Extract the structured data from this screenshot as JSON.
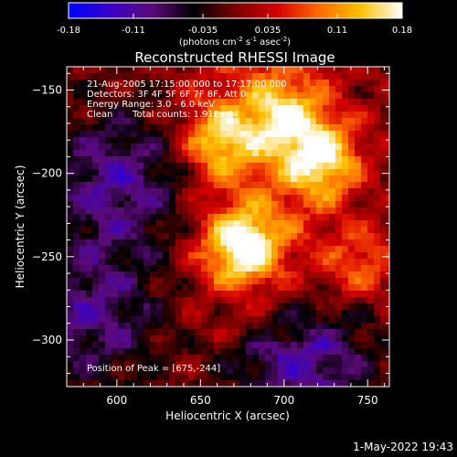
{
  "colorbar": {
    "ticks": [
      "-0.18",
      "-0.11",
      "-0.035",
      "0.035",
      "0.11",
      "0.18"
    ],
    "unit_parts": [
      "(photons cm",
      "-2",
      " s",
      "-1",
      " asec",
      "-2",
      ")"
    ],
    "colors": [
      "#0000ff",
      "#3a00c8",
      "#5a0a78",
      "#000000",
      "#7a0000",
      "#d40000",
      "#ff6a00",
      "#ffc000",
      "#ffffff"
    ]
  },
  "annotations": {
    "line1": "21-Aug-2005 17:15:00.000 to 17:17:00.000",
    "line2": "Detectors: 3F 4F 5F 6F 7F 8F, Att 0",
    "line3": "Energy Range: 3.0 - 6.0 keV",
    "line4_a": "Clean",
    "line4_b": "Total counts: 1.91E+04",
    "peak": "Position of Peak = [675,-244]"
  },
  "footer": {
    "timestamp": "1-May-2022 19:43"
  },
  "chart_data": {
    "type": "heatmap",
    "title": "Reconstructed RHESSI Image",
    "xlabel": "Heliocentric X (arcsec)",
    "ylabel": "Heliocentric Y (arcsec)",
    "xlim": [
      570,
      763
    ],
    "ylim": [
      -328,
      -136
    ],
    "xticks": [
      600,
      650,
      700,
      750
    ],
    "yticks": [
      -150,
      -200,
      -250,
      -300
    ],
    "value_range": [
      -0.18,
      0.18
    ],
    "peak": [
      675,
      -244
    ],
    "sources": [
      {
        "x": 675,
        "y": -244,
        "value": 0.18
      },
      {
        "x": 722,
        "y": -192,
        "value": 0.16
      },
      {
        "x": 662,
        "y": -180,
        "value": 0.13
      },
      {
        "x": 700,
        "y": -165,
        "value": 0.12
      },
      {
        "x": 745,
        "y": -255,
        "value": 0.08
      },
      {
        "x": 600,
        "y": -205,
        "value": -0.1
      },
      {
        "x": 710,
        "y": -310,
        "value": -0.12
      },
      {
        "x": 585,
        "y": -285,
        "value": -0.09
      }
    ]
  }
}
